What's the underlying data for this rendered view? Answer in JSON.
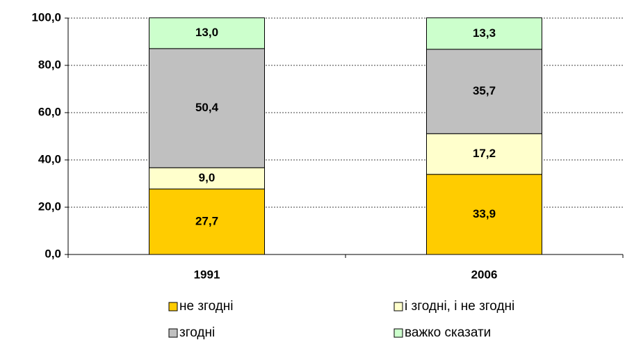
{
  "chart_data": {
    "type": "stacked_bar",
    "categories": [
      "1991",
      "2006"
    ],
    "series": [
      {
        "name": "не згодні",
        "color": "#FFCC00",
        "values": [
          27.7,
          33.9
        ],
        "value_labels": [
          "27,7",
          "33,9"
        ]
      },
      {
        "name": "і згодні, і не згодні",
        "color": "#FFFFCC",
        "values": [
          9.0,
          17.2
        ],
        "value_labels": [
          "9,0",
          "17,2"
        ]
      },
      {
        "name": "згодні",
        "color": "#C0C0C0",
        "values": [
          50.4,
          35.7
        ],
        "value_labels": [
          "50,4",
          "35,7"
        ]
      },
      {
        "name": "важко сказати",
        "color": "#CCFFCC",
        "values": [
          13.0,
          13.3
        ],
        "value_labels": [
          "13,0",
          "13,3"
        ]
      }
    ],
    "ylim": [
      0,
      100
    ],
    "yticks": [
      {
        "value": 0,
        "label": "0,0"
      },
      {
        "value": 20,
        "label": "20,0"
      },
      {
        "value": 40,
        "label": "40,0"
      },
      {
        "value": 60,
        "label": "60,0"
      },
      {
        "value": 80,
        "label": "80,0"
      },
      {
        "value": 100,
        "label": "100,0"
      }
    ],
    "grid": true
  }
}
